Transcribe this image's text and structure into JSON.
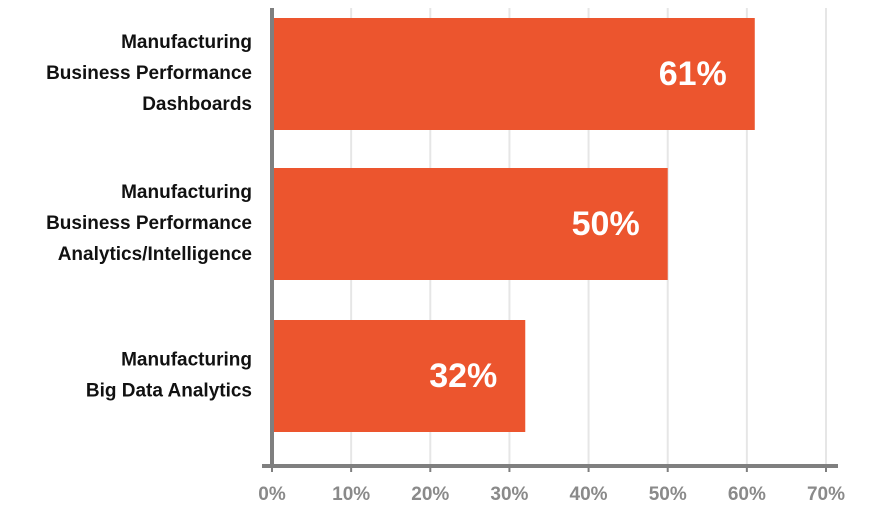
{
  "chart_data": {
    "type": "bar",
    "orientation": "horizontal",
    "categories": [
      [
        "Manufacturing",
        "Business Performance",
        "Dashboards"
      ],
      [
        "Manufacturing",
        "Business Performance",
        "Analytics/Intelligence"
      ],
      [
        "Manufacturing",
        "Big Data Analytics"
      ]
    ],
    "values": [
      61,
      50,
      32
    ],
    "value_labels": [
      "61%",
      "50%",
      "32%"
    ],
    "color": "#ec552e",
    "xlim": [
      0,
      70
    ],
    "xticks": [
      {
        "value": 0,
        "label": "0%"
      },
      {
        "value": 10,
        "label": "10%"
      },
      {
        "value": 20,
        "label": "20%"
      },
      {
        "value": 30,
        "label": "30%"
      },
      {
        "value": 40,
        "label": "40%"
      },
      {
        "value": 50,
        "label": "50%"
      },
      {
        "value": 60,
        "label": "60%"
      },
      {
        "value": 70,
        "label": "70%"
      }
    ],
    "grid": true
  }
}
